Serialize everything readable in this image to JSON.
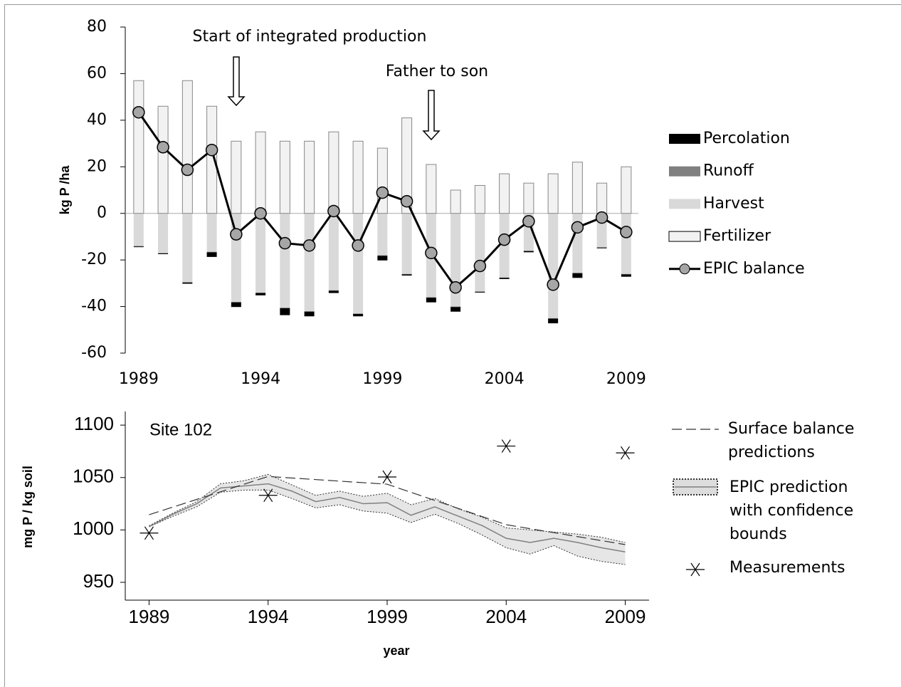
{
  "chart_data": [
    {
      "type": "bar",
      "annotations": [
        "Start of integrated production",
        "Father to son"
      ],
      "y_label": "kg P /ha",
      "x": [
        1989,
        1990,
        1991,
        1992,
        1993,
        1994,
        1995,
        1996,
        1997,
        1998,
        1999,
        2000,
        2001,
        2002,
        2003,
        2004,
        2005,
        2006,
        2007,
        2008,
        2009
      ],
      "xlim": [
        1988.45,
        2009.5
      ],
      "xticks": [
        1989,
        1994,
        1999,
        2004,
        2009
      ],
      "ylim": [
        -60,
        80
      ],
      "yticks": [
        -60,
        -40,
        -20,
        0,
        20,
        40,
        60,
        80
      ],
      "series": [
        {
          "name": "Percolation",
          "color": "#000000",
          "values": [
            -0.3,
            -0.3,
            -0.5,
            -2,
            -2,
            -1,
            -3,
            -2,
            -1,
            -1,
            -2,
            -0.5,
            -2,
            -2,
            -0.3,
            -0.5,
            -0.5,
            -2,
            -2,
            -0.3,
            -1
          ]
        },
        {
          "name": "Runoff",
          "color": "#808080",
          "values": [
            -0.2,
            -0.2,
            -0.2,
            -0.2,
            -0.2,
            -0.2,
            -0.2,
            -0.2,
            -0.2,
            -0.2,
            -0.2,
            -0.2,
            -0.2,
            -0.2,
            -0.2,
            -0.2,
            -0.2,
            -0.2,
            -0.2,
            -0.2,
            -0.2
          ]
        },
        {
          "name": "Harvest",
          "color": "#d9d9d9",
          "values": [
            -14,
            -17,
            -29.5,
            -16.5,
            -38,
            -34,
            -40.5,
            -42,
            -33,
            -43,
            -18,
            -26,
            -36,
            -40,
            -33.5,
            -27.5,
            -16,
            -45,
            -25.5,
            -14.5,
            -26
          ]
        },
        {
          "name": "Fertilizer",
          "color": "#f2f2f2",
          "values": [
            57,
            46,
            57,
            46,
            31,
            35,
            31,
            31,
            35,
            31,
            28,
            41,
            21,
            10,
            12,
            17,
            13,
            17,
            22,
            13,
            20
          ]
        },
        {
          "name": "EPIC balance",
          "type": "line",
          "color": "#000000",
          "marker_color": "#a6a6a6",
          "values": [
            43.4,
            28.4,
            18.7,
            27.2,
            -9,
            0,
            -12.8,
            -13.8,
            1,
            -13.8,
            8.9,
            5.2,
            -17,
            -31.8,
            -22.6,
            -11.3,
            -3.4,
            -30.6,
            -6,
            -1.8,
            -8
          ]
        }
      ]
    },
    {
      "type": "line",
      "annotation": "Site 102",
      "x_label": "year",
      "y_label": "mg P  / kg soil",
      "x": [
        1989,
        1990,
        1991,
        1992,
        1993,
        1994,
        1995,
        1996,
        1997,
        1998,
        1999,
        2000,
        2001,
        2002,
        2003,
        2004,
        2005,
        2006,
        2007,
        2008,
        2009
      ],
      "xlim": [
        1988,
        2010
      ],
      "xticks": [
        1989,
        1994,
        1999,
        2004,
        2009
      ],
      "ylim": [
        933,
        1113
      ],
      "yticks": [
        950,
        1000,
        1050,
        1100
      ],
      "series": [
        {
          "name": "Surface balance predictions",
          "style": "dashed",
          "color": "#333333",
          "x": [
            1989,
            1994,
            1999,
            2004,
            2009
          ],
          "values": [
            1014.5,
            1051,
            1043.6,
            1005,
            986
          ]
        },
        {
          "name": "EPIC prediction with confidence bounds",
          "style": "band",
          "color": "#808080",
          "band_color": "#e6e6e6",
          "values": [
            1003,
            1015,
            1025,
            1040,
            1042,
            1044,
            1037,
            1027,
            1031,
            1025,
            1026,
            1014,
            1022,
            1013,
            1004,
            992,
            988,
            992,
            988,
            983,
            979
          ],
          "upper": [
            1004,
            1016,
            1027,
            1044,
            1047,
            1053,
            1043,
            1033,
            1037,
            1032,
            1035,
            1024,
            1030,
            1020,
            1012,
            1002,
            1000,
            998,
            996,
            993,
            988
          ],
          "lower": [
            1003,
            1013,
            1022,
            1036,
            1038,
            1038,
            1030,
            1021,
            1024,
            1018,
            1016,
            1007,
            1015,
            1006,
            995,
            983,
            977,
            985,
            975,
            970,
            967
          ]
        },
        {
          "name": "Measurements",
          "style": "marker",
          "color": "#000000",
          "x": [
            1989,
            1994,
            1999,
            2004,
            2009
          ],
          "values": [
            997,
            1033,
            1050.5,
            1080,
            1073.5
          ]
        }
      ]
    }
  ]
}
